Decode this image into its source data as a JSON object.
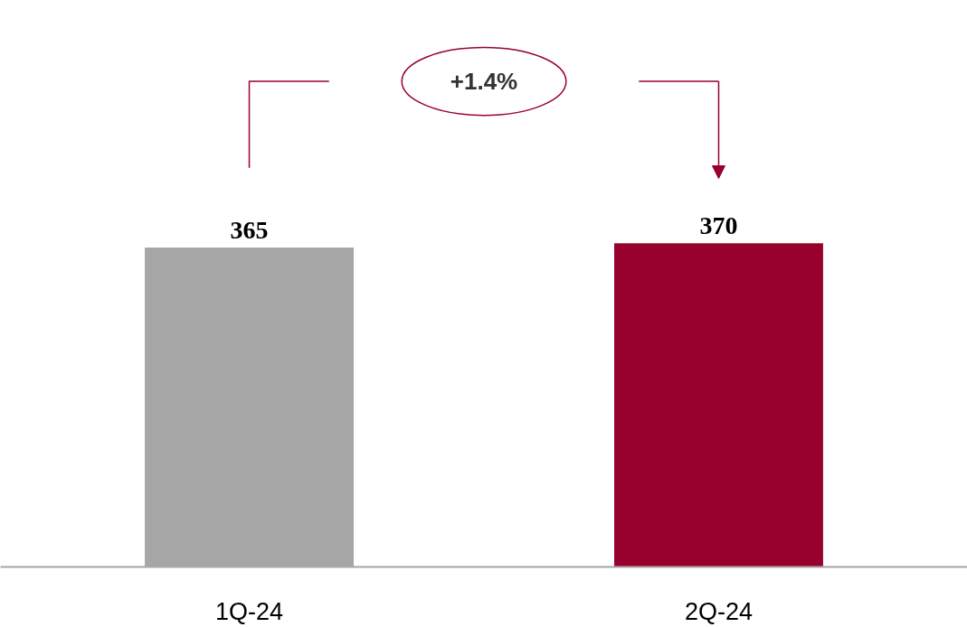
{
  "chart_data": {
    "type": "bar",
    "categories": [
      "1Q-24",
      "2Q-24"
    ],
    "values": [
      365,
      370
    ],
    "colors": [
      "#a6a6a6",
      "#98002e"
    ],
    "data_labels": true,
    "annotations": [
      "+1.4%"
    ]
  }
}
